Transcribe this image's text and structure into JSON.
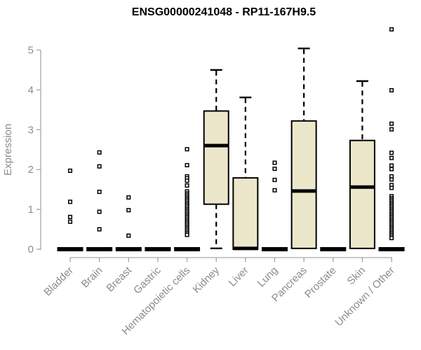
{
  "chart_data": {
    "type": "boxplot",
    "title": "ENSG00000241048 - RP11-167H9.5",
    "xlabel": "",
    "ylabel": "Expression",
    "ylim": [
      0,
      5.6
    ],
    "yticks": [
      0,
      1,
      2,
      3,
      4,
      5
    ],
    "grid": false,
    "legend": false,
    "colors": {
      "box_fill": "#ECE7CB",
      "box_stroke": "#000000",
      "axis_line": "#A6A6A6",
      "axis_text": "#8C8C8C",
      "title_text": "#000000",
      "background": "#FFFFFF"
    },
    "categories": [
      "Bladder",
      "Brain",
      "Breast",
      "Gastric",
      "Hematopoietic cells",
      "Kidney",
      "Liver",
      "Lung",
      "Pancreas",
      "Prostate",
      "Skin",
      "Unknown / Other"
    ],
    "boxes": [
      {
        "category": "Bladder",
        "low": 0,
        "q1": 0,
        "median": 0,
        "q3": 0,
        "high": 0,
        "outliers": [
          1.97,
          1.19,
          0.81,
          0.69
        ]
      },
      {
        "category": "Brain",
        "low": 0,
        "q1": 0,
        "median": 0,
        "q3": 0,
        "high": 0,
        "outliers": [
          2.43,
          2.08,
          1.44,
          0.94,
          0.5
        ]
      },
      {
        "category": "Breast",
        "low": 0,
        "q1": 0,
        "median": 0,
        "q3": 0,
        "high": 0,
        "outliers": [
          1.3,
          0.98,
          0.34
        ]
      },
      {
        "category": "Gastric",
        "low": 0,
        "q1": 0,
        "median": 0,
        "q3": 0,
        "high": 0,
        "outliers": []
      },
      {
        "category": "Hematopoietic cells",
        "low": 0,
        "q1": 0,
        "median": 0,
        "q3": 0,
        "high": 0,
        "outliers": [
          2.51,
          2.11,
          1.83,
          1.78,
          1.72,
          1.6,
          1.45,
          1.4,
          1.36,
          1.32,
          1.28,
          1.24,
          1.2,
          1.16,
          1.12,
          1.08,
          1.04,
          1.0,
          0.96,
          0.92,
          0.88,
          0.84,
          0.8,
          0.76,
          0.72,
          0.68,
          0.64,
          0.6,
          0.56,
          0.52,
          0.48,
          0.44,
          0.4,
          0.36
        ]
      },
      {
        "category": "Kidney",
        "low": 0.02,
        "q1": 1.13,
        "median": 2.6,
        "q3": 3.47,
        "high": 4.5,
        "outliers": []
      },
      {
        "category": "Liver",
        "low": 0,
        "q1": 0,
        "median": 0.02,
        "q3": 1.79,
        "high": 3.81,
        "outliers": []
      },
      {
        "category": "Lung",
        "low": 0,
        "q1": 0,
        "median": 0,
        "q3": 0,
        "high": 0,
        "outliers": [
          2.17,
          2.02,
          1.74,
          1.48
        ]
      },
      {
        "category": "Pancreas",
        "low": 0.02,
        "q1": 0.02,
        "median": 1.46,
        "q3": 3.22,
        "high": 5.04,
        "outliers": []
      },
      {
        "category": "Prostate",
        "low": 0,
        "q1": 0,
        "median": 0,
        "q3": 0,
        "high": 0,
        "outliers": []
      },
      {
        "category": "Skin",
        "low": 0.02,
        "q1": 0.02,
        "median": 1.56,
        "q3": 2.73,
        "high": 4.22,
        "outliers": []
      },
      {
        "category": "Unknown / Other",
        "low": 0,
        "q1": 0,
        "median": 0,
        "q3": 0,
        "high": 0,
        "outliers": [
          5.52,
          3.99,
          3.15,
          3.01,
          2.42,
          2.29,
          2.1,
          2.01,
          1.83,
          1.75,
          1.61,
          1.54,
          1.33,
          1.28,
          1.24,
          1.2,
          1.16,
          1.12,
          1.08,
          1.04,
          1.0,
          0.96,
          0.92,
          0.88,
          0.84,
          0.8,
          0.76,
          0.72,
          0.68,
          0.64,
          0.6,
          0.56,
          0.52,
          0.48,
          0.44,
          0.4,
          0.36,
          0.32,
          0.28
        ]
      }
    ]
  }
}
